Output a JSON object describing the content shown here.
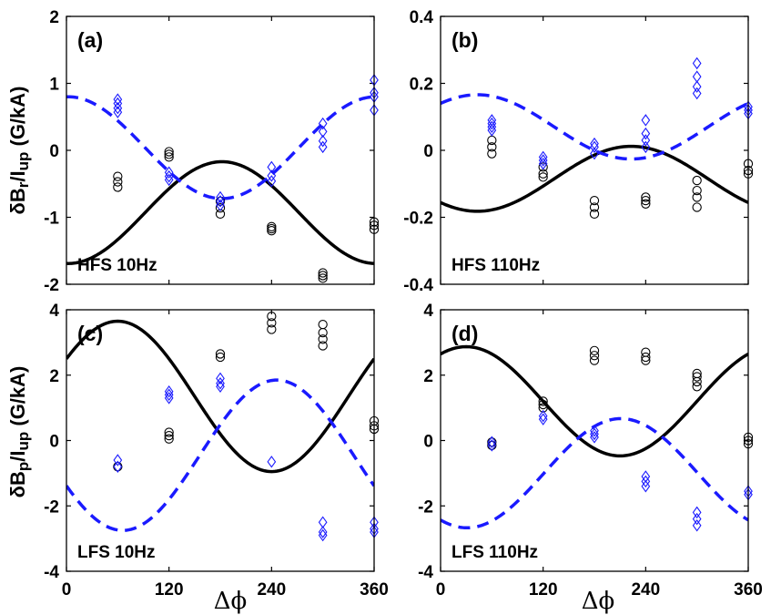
{
  "figure": {
    "ylabel_top": "δB_r/I_up (G/kA)",
    "ylabel_bottom": "δB_p/I_up (G/kA)",
    "xlabel": "Δϕ",
    "colors": {
      "black": "#000000",
      "blue": "#1a1aff"
    }
  },
  "chart_data": [
    {
      "type": "scatter",
      "panel": "(a)",
      "annotation": "HFS 10Hz",
      "xlim": [
        0,
        360
      ],
      "ylim": [
        -2,
        2
      ],
      "xticks": [
        0,
        120,
        240,
        360
      ],
      "yticks": [
        -2,
        -1,
        0,
        1,
        2
      ],
      "show_xticklabels": false,
      "curves": [
        {
          "color": "black",
          "style": "solid",
          "offset": -0.93,
          "amplitude": 0.76,
          "phase_deg": 182
        },
        {
          "color": "blue",
          "style": "dashed",
          "offset": 0.04,
          "amplitude": 0.76,
          "phase_deg": 2
        }
      ],
      "series": [
        {
          "marker": "circle",
          "color": "black",
          "points": [
            [
              60,
              -0.39
            ],
            [
              60,
              -0.47
            ],
            [
              60,
              -0.55
            ],
            [
              120,
              -0.02
            ],
            [
              120,
              -0.06
            ],
            [
              120,
              -0.1
            ],
            [
              180,
              -0.76
            ],
            [
              180,
              -0.86
            ],
            [
              180,
              -0.95
            ],
            [
              240,
              -1.14
            ],
            [
              240,
              -1.17
            ],
            [
              240,
              -1.2
            ],
            [
              300,
              -1.83
            ],
            [
              300,
              -1.87
            ],
            [
              300,
              -1.91
            ],
            [
              360,
              -1.07
            ],
            [
              360,
              -1.12
            ],
            [
              360,
              -1.18
            ]
          ]
        },
        {
          "marker": "diamond",
          "color": "blue",
          "points": [
            [
              60,
              0.76
            ],
            [
              60,
              0.7
            ],
            [
              60,
              0.63
            ],
            [
              60,
              0.57
            ],
            [
              120,
              -0.33
            ],
            [
              120,
              -0.39
            ],
            [
              120,
              -0.44
            ],
            [
              180,
              -0.7
            ],
            [
              180,
              -0.76
            ],
            [
              180,
              -0.82
            ],
            [
              240,
              -0.25
            ],
            [
              240,
              -0.38
            ],
            [
              240,
              -0.46
            ],
            [
              300,
              0.4
            ],
            [
              300,
              0.28
            ],
            [
              300,
              0.14
            ],
            [
              300,
              0.05
            ],
            [
              360,
              1.05
            ],
            [
              360,
              0.86
            ],
            [
              360,
              0.8
            ],
            [
              360,
              0.6
            ]
          ]
        }
      ]
    },
    {
      "type": "scatter",
      "panel": "(b)",
      "annotation": "HFS 110Hz",
      "xlim": [
        0,
        360
      ],
      "ylim": [
        -0.4,
        0.4
      ],
      "xticks": [
        0,
        120,
        240,
        360
      ],
      "yticks": [
        -0.4,
        -0.2,
        0,
        0.2,
        0.4
      ],
      "show_xticklabels": false,
      "curves": [
        {
          "color": "black",
          "style": "solid",
          "offset": -0.085,
          "amplitude": 0.097,
          "phase_deg": 223
        },
        {
          "color": "blue",
          "style": "dashed",
          "offset": 0.07,
          "amplitude": 0.096,
          "phase_deg": 43
        }
      ],
      "series": [
        {
          "marker": "circle",
          "color": "black",
          "points": [
            [
              60,
              0.03
            ],
            [
              60,
              0.01
            ],
            [
              60,
              -0.01
            ],
            [
              120,
              -0.05
            ],
            [
              120,
              -0.07
            ],
            [
              120,
              -0.08
            ],
            [
              180,
              -0.15
            ],
            [
              180,
              -0.17
            ],
            [
              180,
              -0.19
            ],
            [
              240,
              -0.14
            ],
            [
              240,
              -0.15
            ],
            [
              240,
              -0.16
            ],
            [
              300,
              -0.09
            ],
            [
              300,
              -0.12
            ],
            [
              300,
              -0.14
            ],
            [
              300,
              -0.17
            ],
            [
              360,
              -0.04
            ],
            [
              360,
              -0.06
            ],
            [
              360,
              -0.07
            ]
          ]
        },
        {
          "marker": "diamond",
          "color": "blue",
          "points": [
            [
              60,
              0.09
            ],
            [
              60,
              0.08
            ],
            [
              60,
              0.07
            ],
            [
              60,
              0.06
            ],
            [
              120,
              -0.02
            ],
            [
              120,
              -0.03
            ],
            [
              120,
              -0.04
            ],
            [
              180,
              0.02
            ],
            [
              180,
              0.01
            ],
            [
              180,
              -0.01
            ],
            [
              240,
              0.09
            ],
            [
              240,
              0.05
            ],
            [
              240,
              0.03
            ],
            [
              240,
              0.01
            ],
            [
              300,
              0.26
            ],
            [
              300,
              0.22
            ],
            [
              300,
              0.19
            ],
            [
              300,
              0.17
            ],
            [
              360,
              0.13
            ],
            [
              360,
              0.12
            ],
            [
              360,
              0.11
            ]
          ]
        }
      ]
    },
    {
      "type": "scatter",
      "panel": "(c)",
      "annotation": "LFS 10Hz",
      "xlim": [
        0,
        360
      ],
      "ylim": [
        -4,
        4
      ],
      "xticks": [
        0,
        120,
        240,
        360
      ],
      "yticks": [
        -4,
        -2,
        0,
        2,
        4
      ],
      "show_xticklabels": true,
      "curves": [
        {
          "color": "black",
          "style": "solid",
          "offset": 1.35,
          "amplitude": 2.3,
          "phase_deg": 60
        },
        {
          "color": "blue",
          "style": "dashed",
          "offset": -0.45,
          "amplitude": 2.3,
          "phase_deg": 246
        }
      ],
      "series": [
        {
          "marker": "circle",
          "color": "black",
          "points": [
            [
              60,
              -0.8
            ],
            [
              120,
              0.25
            ],
            [
              120,
              0.15
            ],
            [
              120,
              0.05
            ],
            [
              180,
              2.65
            ],
            [
              180,
              2.55
            ],
            [
              240,
              3.8
            ],
            [
              240,
              3.6
            ],
            [
              240,
              3.4
            ],
            [
              300,
              3.55
            ],
            [
              300,
              3.3
            ],
            [
              300,
              3.1
            ],
            [
              300,
              2.9
            ],
            [
              360,
              0.6
            ],
            [
              360,
              0.45
            ],
            [
              360,
              0.35
            ]
          ]
        },
        {
          "marker": "diamond",
          "color": "blue",
          "points": [
            [
              60,
              -0.6
            ],
            [
              60,
              -0.8
            ],
            [
              120,
              1.5
            ],
            [
              120,
              1.4
            ],
            [
              120,
              1.3
            ],
            [
              180,
              1.9
            ],
            [
              180,
              1.75
            ],
            [
              180,
              1.65
            ],
            [
              240,
              -0.65
            ],
            [
              300,
              -2.5
            ],
            [
              300,
              -2.8
            ],
            [
              300,
              -2.9
            ],
            [
              360,
              -2.5
            ],
            [
              360,
              -2.7
            ],
            [
              360,
              -2.8
            ]
          ]
        }
      ]
    },
    {
      "type": "scatter",
      "panel": "(d)",
      "annotation": "LFS 110Hz",
      "xlim": [
        0,
        360
      ],
      "ylim": [
        -4,
        4
      ],
      "xticks": [
        0,
        120,
        240,
        360
      ],
      "yticks": [
        -4,
        -2,
        0,
        2,
        4
      ],
      "show_xticklabels": true,
      "curves": [
        {
          "color": "black",
          "style": "solid",
          "offset": 1.2,
          "amplitude": 1.67,
          "phase_deg": 30
        },
        {
          "color": "blue",
          "style": "dashed",
          "offset": -1.0,
          "amplitude": 1.67,
          "phase_deg": 211
        }
      ],
      "series": [
        {
          "marker": "circle",
          "color": "black",
          "points": [
            [
              60,
              -0.05
            ],
            [
              60,
              -0.15
            ],
            [
              120,
              1.2
            ],
            [
              120,
              1.1
            ],
            [
              120,
              1.0
            ],
            [
              180,
              2.75
            ],
            [
              180,
              2.6
            ],
            [
              180,
              2.45
            ],
            [
              240,
              2.7
            ],
            [
              240,
              2.55
            ],
            [
              240,
              2.45
            ],
            [
              300,
              2.05
            ],
            [
              300,
              1.95
            ],
            [
              300,
              1.8
            ],
            [
              300,
              1.65
            ],
            [
              360,
              0.1
            ],
            [
              360,
              0.0
            ],
            [
              360,
              -0.1
            ]
          ]
        },
        {
          "marker": "diamond",
          "color": "blue",
          "points": [
            [
              60,
              -0.05
            ],
            [
              60,
              -0.15
            ],
            [
              120,
              0.75
            ],
            [
              120,
              0.65
            ],
            [
              180,
              0.3
            ],
            [
              180,
              0.2
            ],
            [
              180,
              0.1
            ],
            [
              240,
              -1.1
            ],
            [
              240,
              -1.25
            ],
            [
              240,
              -1.4
            ],
            [
              300,
              -2.2
            ],
            [
              300,
              -2.4
            ],
            [
              300,
              -2.6
            ],
            [
              360,
              -1.55
            ],
            [
              360,
              -1.65
            ]
          ]
        }
      ]
    }
  ]
}
